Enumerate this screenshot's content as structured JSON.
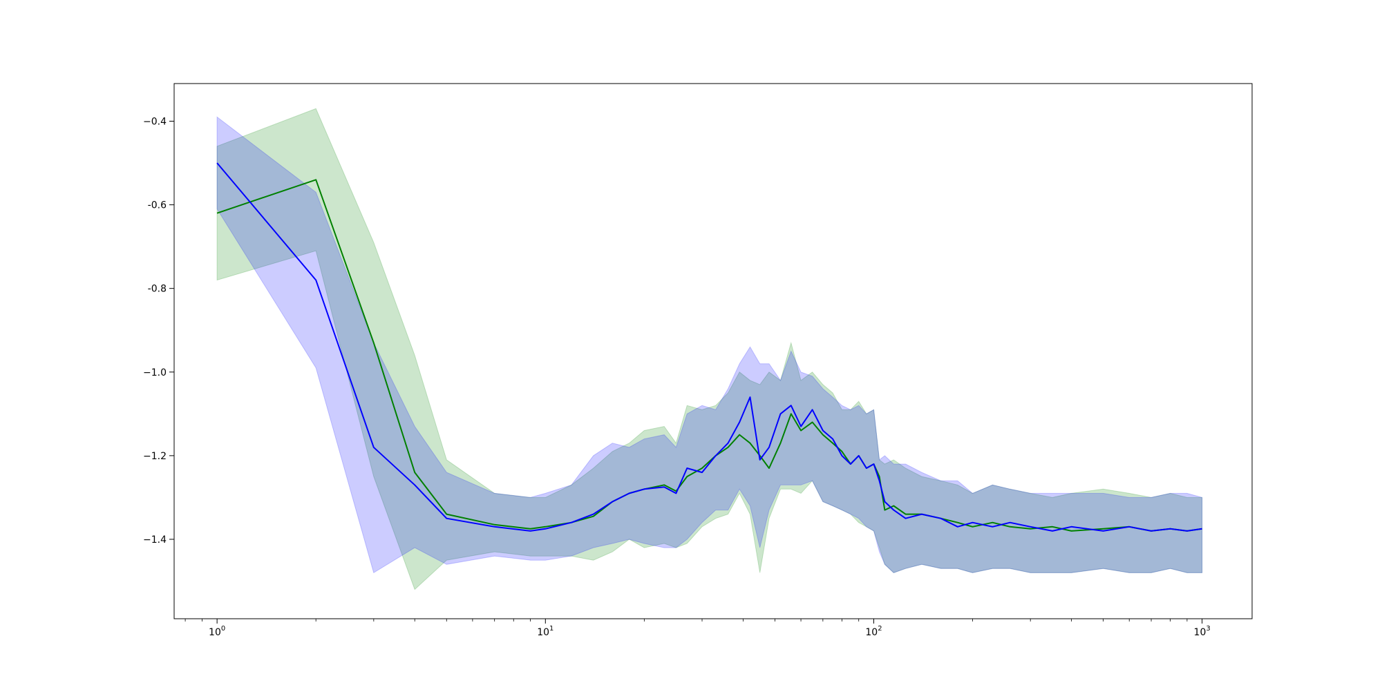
{
  "chart_data": {
    "type": "line",
    "title": "",
    "xlabel": "",
    "ylabel": "",
    "xscale": "log",
    "xlim": [
      0.74,
      1420
    ],
    "ylim": [
      -1.59,
      -0.31
    ],
    "x_ticks": [
      {
        "value": 1,
        "base": "10",
        "exp": "0"
      },
      {
        "value": 10,
        "base": "10",
        "exp": "1"
      },
      {
        "value": 100,
        "base": "10",
        "exp": "2"
      },
      {
        "value": 1000,
        "base": "10",
        "exp": "3"
      }
    ],
    "y_ticks": [
      {
        "value": -0.4,
        "label": "−0.4"
      },
      {
        "value": -0.6,
        "label": "-0.6"
      },
      {
        "value": -0.8,
        "label": "-0.8"
      },
      {
        "value": -1.0,
        "label": "−1.0"
      },
      {
        "value": -1.2,
        "label": "−1.2"
      },
      {
        "value": -1.4,
        "label": "−1.4"
      }
    ],
    "grid": false,
    "legend": "none",
    "series": [
      {
        "color": "#008000",
        "band_color": "#008000",
        "x": [
          1,
          2,
          3,
          4,
          5,
          7,
          9,
          10,
          12,
          14,
          16,
          18,
          20,
          23,
          25,
          27,
          30,
          33,
          36,
          39,
          42,
          45,
          48,
          52,
          56,
          60,
          65,
          70,
          75,
          80,
          85,
          90,
          95,
          100,
          104,
          108,
          115,
          125,
          140,
          160,
          180,
          200,
          230,
          260,
          300,
          350,
          400,
          500,
          600,
          700,
          800,
          900,
          1000
        ],
        "y": [
          -0.62,
          -0.54,
          -0.93,
          -1.24,
          -1.34,
          -1.365,
          -1.375,
          -1.37,
          -1.36,
          -1.345,
          -1.31,
          -1.29,
          -1.28,
          -1.27,
          -1.285,
          -1.25,
          -1.23,
          -1.2,
          -1.18,
          -1.15,
          -1.17,
          -1.2,
          -1.23,
          -1.17,
          -1.1,
          -1.14,
          -1.12,
          -1.15,
          -1.17,
          -1.19,
          -1.22,
          -1.2,
          -1.23,
          -1.22,
          -1.25,
          -1.33,
          -1.32,
          -1.34,
          -1.34,
          -1.35,
          -1.36,
          -1.37,
          -1.36,
          -1.37,
          -1.375,
          -1.37,
          -1.38,
          -1.375,
          -1.37,
          -1.38,
          -1.375,
          -1.38,
          -1.375
        ],
        "upper": [
          -0.46,
          -0.37,
          -0.69,
          -0.96,
          -1.21,
          -1.29,
          -1.3,
          -1.3,
          -1.27,
          -1.23,
          -1.19,
          -1.17,
          -1.14,
          -1.13,
          -1.17,
          -1.08,
          -1.09,
          -1.08,
          -1.05,
          -1.0,
          -1.02,
          -1.03,
          -1.0,
          -1.02,
          -0.93,
          -1.02,
          -1.0,
          -1.03,
          -1.05,
          -1.09,
          -1.09,
          -1.07,
          -1.1,
          -1.09,
          -1.21,
          -1.22,
          -1.21,
          -1.23,
          -1.25,
          -1.26,
          -1.27,
          -1.29,
          -1.27,
          -1.28,
          -1.29,
          -1.3,
          -1.29,
          -1.28,
          -1.29,
          -1.3,
          -1.29,
          -1.3,
          -1.3
        ],
        "lower": [
          -0.78,
          -0.71,
          -1.25,
          -1.52,
          -1.45,
          -1.43,
          -1.44,
          -1.44,
          -1.44,
          -1.45,
          -1.43,
          -1.4,
          -1.42,
          -1.41,
          -1.42,
          -1.41,
          -1.37,
          -1.35,
          -1.34,
          -1.29,
          -1.34,
          -1.48,
          -1.35,
          -1.28,
          -1.28,
          -1.29,
          -1.26,
          -1.31,
          -1.32,
          -1.33,
          -1.34,
          -1.36,
          -1.37,
          -1.38,
          -1.42,
          -1.46,
          -1.48,
          -1.47,
          -1.46,
          -1.47,
          -1.47,
          -1.48,
          -1.47,
          -1.47,
          -1.48,
          -1.48,
          -1.48,
          -1.47,
          -1.48,
          -1.48,
          -1.47,
          -1.48,
          -1.48
        ]
      },
      {
        "color": "#0000ff",
        "band_color": "#0000ff",
        "x": [
          1,
          2,
          3,
          4,
          5,
          7,
          9,
          10,
          12,
          14,
          16,
          18,
          20,
          23,
          25,
          27,
          30,
          33,
          36,
          39,
          42,
          45,
          48,
          52,
          56,
          60,
          65,
          70,
          75,
          80,
          85,
          90,
          95,
          100,
          104,
          108,
          115,
          125,
          140,
          160,
          180,
          200,
          230,
          260,
          300,
          350,
          400,
          500,
          600,
          700,
          800,
          900,
          1000
        ],
        "y": [
          -0.5,
          -0.78,
          -1.18,
          -1.27,
          -1.35,
          -1.37,
          -1.38,
          -1.375,
          -1.36,
          -1.34,
          -1.31,
          -1.29,
          -1.28,
          -1.275,
          -1.29,
          -1.23,
          -1.24,
          -1.2,
          -1.17,
          -1.12,
          -1.06,
          -1.21,
          -1.18,
          -1.1,
          -1.08,
          -1.13,
          -1.09,
          -1.14,
          -1.16,
          -1.2,
          -1.22,
          -1.2,
          -1.23,
          -1.22,
          -1.26,
          -1.31,
          -1.33,
          -1.35,
          -1.34,
          -1.35,
          -1.37,
          -1.36,
          -1.37,
          -1.36,
          -1.37,
          -1.38,
          -1.37,
          -1.38,
          -1.37,
          -1.38,
          -1.375,
          -1.38,
          -1.375
        ],
        "upper": [
          -0.39,
          -0.57,
          -0.93,
          -1.13,
          -1.24,
          -1.29,
          -1.3,
          -1.29,
          -1.27,
          -1.2,
          -1.17,
          -1.18,
          -1.16,
          -1.15,
          -1.18,
          -1.1,
          -1.08,
          -1.09,
          -1.04,
          -0.98,
          -0.94,
          -0.98,
          -0.98,
          -1.02,
          -0.95,
          -1.0,
          -1.01,
          -1.04,
          -1.06,
          -1.08,
          -1.09,
          -1.08,
          -1.1,
          -1.09,
          -1.21,
          -1.2,
          -1.22,
          -1.22,
          -1.24,
          -1.26,
          -1.26,
          -1.29,
          -1.27,
          -1.28,
          -1.29,
          -1.29,
          -1.29,
          -1.29,
          -1.3,
          -1.3,
          -1.29,
          -1.29,
          -1.3
        ],
        "lower": [
          -0.61,
          -0.99,
          -1.48,
          -1.42,
          -1.46,
          -1.44,
          -1.45,
          -1.45,
          -1.44,
          -1.42,
          -1.41,
          -1.4,
          -1.41,
          -1.42,
          -1.42,
          -1.4,
          -1.36,
          -1.33,
          -1.33,
          -1.28,
          -1.32,
          -1.42,
          -1.33,
          -1.27,
          -1.27,
          -1.27,
          -1.26,
          -1.31,
          -1.32,
          -1.33,
          -1.34,
          -1.35,
          -1.37,
          -1.38,
          -1.43,
          -1.46,
          -1.48,
          -1.47,
          -1.46,
          -1.47,
          -1.47,
          -1.48,
          -1.47,
          -1.47,
          -1.48,
          -1.48,
          -1.48,
          -1.47,
          -1.48,
          -1.48,
          -1.47,
          -1.48,
          -1.48
        ]
      }
    ]
  }
}
